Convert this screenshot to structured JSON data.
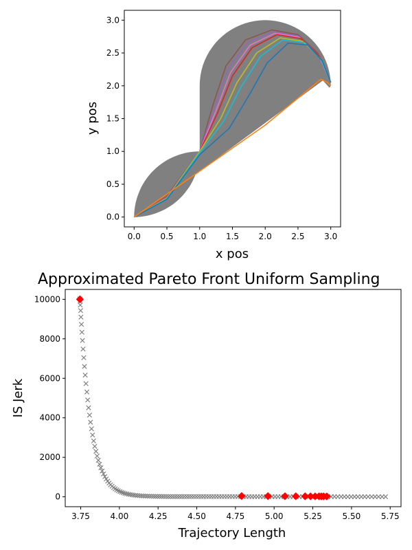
{
  "chart_data": [
    {
      "type": "line",
      "title": "",
      "xlabel": "x pos",
      "ylabel": "y pos",
      "xlim": [
        -0.15,
        3.15
      ],
      "ylim": [
        -0.15,
        3.15
      ],
      "xticks": [
        "0.0",
        "0.5",
        "1.0",
        "1.5",
        "2.0",
        "2.5",
        "3.0"
      ],
      "yticks": [
        "0.0",
        "0.5",
        "1.0",
        "1.5",
        "2.0",
        "2.5",
        "3.0"
      ],
      "feasible_region_color": "#808080",
      "series": [
        {
          "color": "#8c564b",
          "points": [
            [
              0,
              0
            ],
            [
              0.5,
              0.32
            ],
            [
              1.0,
              1.0
            ],
            [
              1.2,
              1.7
            ],
            [
              1.4,
              2.3
            ],
            [
              1.7,
              2.7
            ],
            [
              2.1,
              2.85
            ],
            [
              2.5,
              2.78
            ],
            [
              2.8,
              2.5
            ],
            [
              3.0,
              2.05
            ]
          ]
        },
        {
          "color": "#9467bd",
          "points": [
            [
              0,
              0
            ],
            [
              0.5,
              0.31
            ],
            [
              1.0,
              1.0
            ],
            [
              1.22,
              1.66
            ],
            [
              1.43,
              2.25
            ],
            [
              1.73,
              2.66
            ],
            [
              2.12,
              2.82
            ],
            [
              2.5,
              2.76
            ],
            [
              2.8,
              2.48
            ],
            [
              3.0,
              2.05
            ]
          ]
        },
        {
          "color": "#e377c2",
          "points": [
            [
              0,
              0
            ],
            [
              0.5,
              0.3
            ],
            [
              1.0,
              1.0
            ],
            [
              1.25,
              1.62
            ],
            [
              1.47,
              2.2
            ],
            [
              1.77,
              2.62
            ],
            [
              2.15,
              2.8
            ],
            [
              2.52,
              2.74
            ],
            [
              2.82,
              2.46
            ],
            [
              3.0,
              2.05
            ]
          ]
        },
        {
          "color": "#d62728",
          "points": [
            [
              0,
              0
            ],
            [
              0.5,
              0.3
            ],
            [
              1.0,
              1.0
            ],
            [
              1.27,
              1.58
            ],
            [
              1.5,
              2.15
            ],
            [
              1.8,
              2.58
            ],
            [
              2.18,
              2.78
            ],
            [
              2.54,
              2.72
            ],
            [
              2.83,
              2.45
            ],
            [
              3.0,
              2.05
            ]
          ]
        },
        {
          "color": "#bcbd22",
          "points": [
            [
              0,
              0
            ],
            [
              0.5,
              0.29
            ],
            [
              1.0,
              1.0
            ],
            [
              1.32,
              1.5
            ],
            [
              1.57,
              2.05
            ],
            [
              1.87,
              2.5
            ],
            [
              2.23,
              2.73
            ],
            [
              2.57,
              2.68
            ],
            [
              2.84,
              2.42
            ],
            [
              3.0,
              2.05
            ]
          ]
        },
        {
          "color": "#17becf",
          "points": [
            [
              0,
              0
            ],
            [
              0.5,
              0.28
            ],
            [
              1.0,
              0.98
            ],
            [
              1.36,
              1.45
            ],
            [
              1.63,
              1.98
            ],
            [
              1.93,
              2.45
            ],
            [
              2.27,
              2.7
            ],
            [
              2.6,
              2.66
            ],
            [
              2.85,
              2.4
            ],
            [
              3.0,
              2.05
            ]
          ]
        },
        {
          "color": "#1f77b4",
          "points": [
            [
              0,
              0
            ],
            [
              0.5,
              0.27
            ],
            [
              1.0,
              0.95
            ],
            [
              1.45,
              1.35
            ],
            [
              1.75,
              1.85
            ],
            [
              2.03,
              2.35
            ],
            [
              2.35,
              2.65
            ],
            [
              2.65,
              2.62
            ],
            [
              2.87,
              2.38
            ],
            [
              3.0,
              2.05
            ]
          ]
        },
        {
          "color": "#ff7f0e",
          "points": [
            [
              0,
              0
            ],
            [
              1.0,
              0.7
            ],
            [
              2.0,
              1.4
            ],
            [
              2.85,
              2.1
            ],
            [
              2.95,
              2.05
            ],
            [
              3.0,
              2.0
            ]
          ]
        }
      ]
    },
    {
      "type": "scatter",
      "title": "Approximated Pareto Front Uniform Sampling",
      "xlabel": "Trajectory Length",
      "ylabel": "IS Jerk",
      "xlim": [
        3.65,
        5.82
      ],
      "ylim": [
        -500,
        10500
      ],
      "xticks": [
        "3.75",
        "4.00",
        "4.25",
        "4.50",
        "4.75",
        "5.00",
        "5.25",
        "5.50",
        "5.75"
      ],
      "yticks": [
        "0",
        "2000",
        "4000",
        "6000",
        "8000",
        "10000"
      ],
      "front_color": "#808080",
      "front_marker": "x",
      "front_x_range": [
        3.745,
        5.72
      ],
      "front_y_max": 10000,
      "highlight_color": "#ff0000",
      "highlight_marker": "diamond",
      "highlight_points": [
        [
          3.745,
          10000
        ],
        [
          4.79,
          40
        ],
        [
          4.96,
          35
        ],
        [
          5.07,
          30
        ],
        [
          5.14,
          28
        ],
        [
          5.2,
          26
        ],
        [
          5.235,
          25
        ],
        [
          5.265,
          24
        ],
        [
          5.29,
          23
        ],
        [
          5.305,
          22
        ],
        [
          5.32,
          22
        ],
        [
          5.34,
          21
        ]
      ]
    }
  ]
}
